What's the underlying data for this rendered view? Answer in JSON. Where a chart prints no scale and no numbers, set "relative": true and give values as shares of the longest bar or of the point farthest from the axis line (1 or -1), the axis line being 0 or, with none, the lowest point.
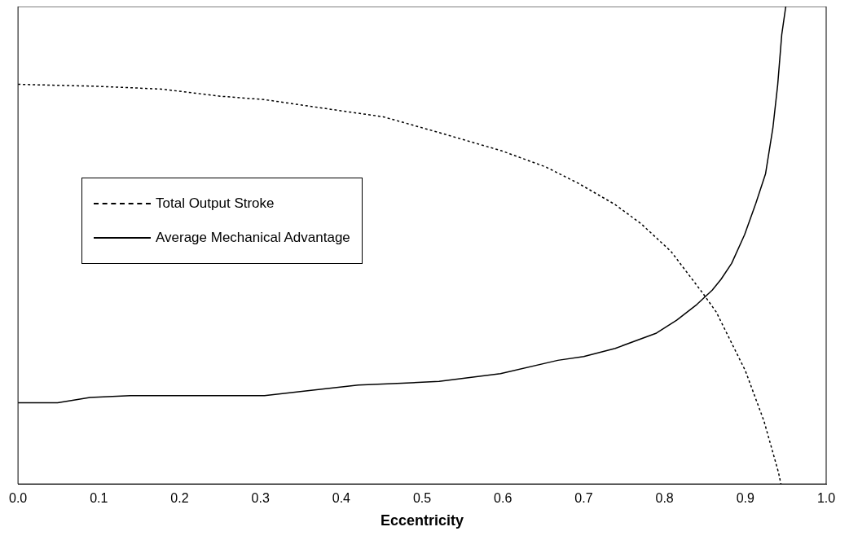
{
  "chart_data": {
    "type": "line",
    "relative": true,
    "xlabel": "Eccentricity",
    "xlim": [
      0,
      1
    ],
    "xticks": [
      {
        "value": 0,
        "label": "0.0"
      },
      0.1,
      0.2,
      0.3,
      0.4,
      0.5,
      0.6,
      0.7,
      0.8,
      0.9,
      {
        "value": 1,
        "label": "1.0"
      }
    ],
    "legend": "left",
    "grid": false,
    "marker": "none",
    "series": [
      {
        "name": "Total Output Stroke",
        "color": "#000000",
        "line_style": "dashed",
        "x": [
          0,
          0.097,
          0.178,
          0.251,
          0.305,
          0.398,
          0.452,
          0.521,
          0.598,
          0.653,
          0.693,
          0.739,
          0.771,
          0.808,
          0.848,
          0.864,
          0.9,
          0.923,
          0.941,
          0.944
        ],
        "values": [
          0.837,
          0.833,
          0.827,
          0.812,
          0.805,
          0.782,
          0.769,
          0.736,
          0.698,
          0.664,
          0.63,
          0.585,
          0.545,
          0.487,
          0.398,
          0.36,
          0.237,
          0.132,
          0.024,
          0
        ]
      },
      {
        "name": "Average Mechanical Advantage",
        "color": "#000000",
        "line_style": "solid",
        "x": [
          0,
          0.049,
          0.089,
          0.139,
          0.305,
          0.347,
          0.421,
          0.475,
          0.521,
          0.597,
          0.668,
          0.7,
          0.739,
          0.79,
          0.815,
          0.84,
          0.859,
          0.87,
          0.883,
          0.899,
          0.913,
          0.925,
          0.934,
          0.94,
          0.945,
          0.95
        ],
        "values": [
          0.17,
          0.17,
          0.181,
          0.185,
          0.185,
          0.193,
          0.207,
          0.211,
          0.215,
          0.231,
          0.259,
          0.267,
          0.284,
          0.316,
          0.343,
          0.376,
          0.406,
          0.429,
          0.462,
          0.522,
          0.588,
          0.65,
          0.745,
          0.836,
          0.941,
          1
        ]
      }
    ]
  }
}
